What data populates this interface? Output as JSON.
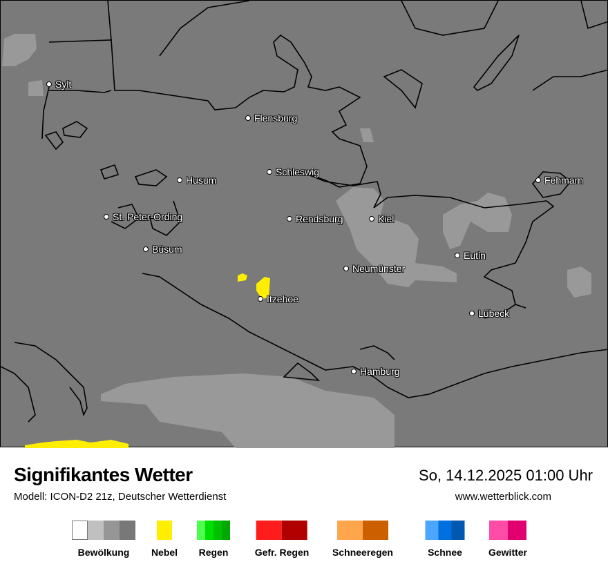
{
  "map": {
    "cities": [
      {
        "name": "Sylt"
      },
      {
        "name": "Flensburg"
      },
      {
        "name": "Schleswig"
      },
      {
        "name": "Husum"
      },
      {
        "name": "St. Peter-Ording"
      },
      {
        "name": "Büsum"
      },
      {
        "name": "Rendsburg"
      },
      {
        "name": "Kiel"
      },
      {
        "name": "Fehmarn"
      },
      {
        "name": "Eutin"
      },
      {
        "name": "Neumünster"
      },
      {
        "name": "Itzehoe"
      },
      {
        "name": "Lübeck"
      },
      {
        "name": "Hamburg"
      }
    ],
    "colors": {
      "background": "#7a7a7a",
      "cloud_light": "#999999",
      "fog": "#ffee00"
    }
  },
  "header": {
    "title": "Signifikantes Wetter",
    "subtitle": "Modell: ICON-D2 21z, Deutscher Wetterdienst",
    "datetime": "So, 14.12.2025 01:00 Uhr",
    "website": "www.wetterblick.com"
  },
  "legend": [
    {
      "label": "Bewölkung",
      "colors": [
        "#ffffff",
        "#c0c0c0",
        "#969696",
        "#787878"
      ]
    },
    {
      "label": "Nebel",
      "colors": [
        "#ffee00"
      ]
    },
    {
      "label": "Regen",
      "colors": [
        "#4cff4c",
        "#00e000",
        "#00c000",
        "#00a800"
      ]
    },
    {
      "label": "Gefr. Regen",
      "colors": [
        "#ff1c1c",
        "#b00000"
      ]
    },
    {
      "label": "Schneeregen",
      "colors": [
        "#ffa64c",
        "#cc5f00"
      ]
    },
    {
      "label": "Schnee",
      "colors": [
        "#4ca6ff",
        "#0070e0",
        "#0058b0"
      ]
    },
    {
      "label": "Gewitter",
      "colors": [
        "#ff4ca6",
        "#e00070"
      ]
    }
  ]
}
